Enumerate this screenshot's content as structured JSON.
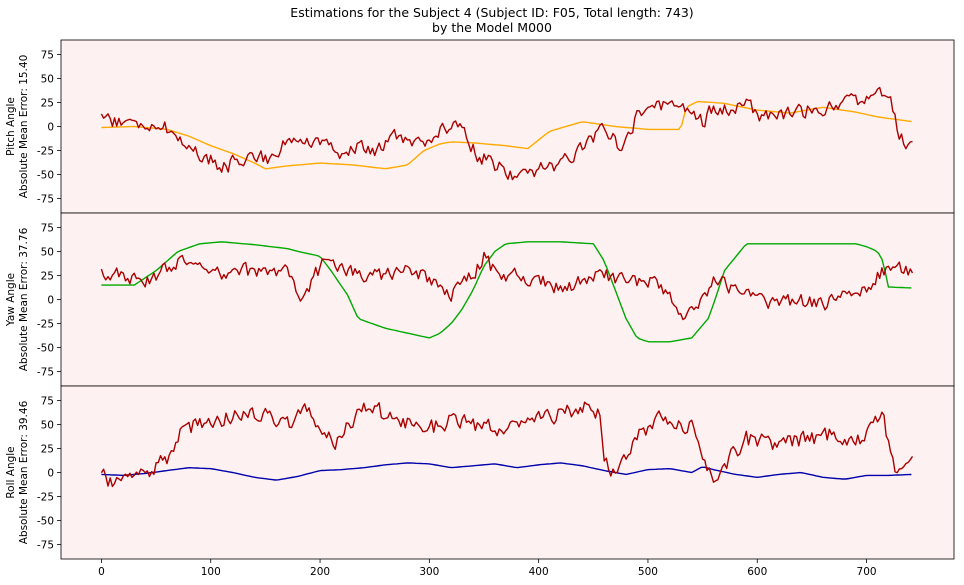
{
  "title": {
    "line1": "Estimations for the Subject 4 (Subject ID: F05, Total length: 743)",
    "line2": "by the Model M000"
  },
  "colors": {
    "panel_bg": "#fdf1f1",
    "estimate": "#aa0000",
    "pitch": "#ffaa00",
    "yaw": "#00aa00",
    "roll": "#0000aa",
    "axis": "#000000"
  },
  "chart_data": [
    {
      "type": "line",
      "panel": "pitch",
      "ylabel": [
        "Pitch Angle",
        "Absolute Mean Error: 15.40"
      ],
      "xlim": [
        -37,
        780
      ],
      "ylim": [
        -90,
        90
      ],
      "yticks": [
        -75,
        -50,
        -25,
        0,
        25,
        50,
        75
      ],
      "xticks": [],
      "series": [
        {
          "role": "ground_truth",
          "color": "#ffaa00",
          "x": [
            0,
            30,
            60,
            80,
            100,
            120,
            140,
            150,
            170,
            200,
            230,
            260,
            280,
            295,
            310,
            320,
            340,
            370,
            390,
            410,
            440,
            470,
            500,
            520,
            530,
            535,
            545,
            560,
            570,
            600,
            630,
            660,
            690,
            710,
            742
          ],
          "y": [
            -1,
            0,
            -3,
            -10,
            -20,
            -28,
            -38,
            -44,
            -41,
            -38,
            -40,
            -44,
            -40,
            -25,
            -18,
            -16,
            -17,
            -20,
            -23,
            -5,
            5,
            0,
            -3,
            -3,
            -3,
            20,
            26,
            25,
            24,
            17,
            14,
            20,
            15,
            10,
            5
          ]
        },
        {
          "role": "estimate",
          "color": "#aa0000",
          "x": [
            0,
            15,
            25,
            40,
            55,
            70,
            85,
            100,
            110,
            120,
            140,
            155,
            170,
            185,
            200,
            215,
            230,
            250,
            270,
            285,
            300,
            315,
            330,
            345,
            360,
            375,
            385,
            400,
            420,
            440,
            460,
            475,
            490,
            505,
            520,
            535,
            550,
            560,
            575,
            590,
            605,
            620,
            640,
            660,
            680,
            700,
            710,
            720,
            730,
            742
          ],
          "y": [
            10,
            5,
            2,
            0,
            3,
            -12,
            -25,
            -35,
            -45,
            -38,
            -30,
            -35,
            -10,
            -20,
            -15,
            -30,
            -22,
            -25,
            -10,
            -15,
            -20,
            0,
            -5,
            -30,
            -40,
            -50,
            -52,
            -45,
            -40,
            -20,
            0,
            -20,
            10,
            25,
            20,
            15,
            5,
            20,
            15,
            25,
            10,
            10,
            15,
            20,
            25,
            30,
            40,
            35,
            -10,
            -20
          ],
          "noise": 7
        }
      ]
    },
    {
      "type": "line",
      "panel": "yaw",
      "ylabel": [
        "Yaw Angle",
        "Absolute Mean Error: 37.76"
      ],
      "xlim": [
        -37,
        780
      ],
      "ylim": [
        -90,
        90
      ],
      "yticks": [
        -75,
        -50,
        -25,
        0,
        25,
        50,
        75
      ],
      "xticks": [],
      "series": [
        {
          "role": "ground_truth",
          "color": "#00aa00",
          "x": [
            0,
            30,
            50,
            70,
            90,
            110,
            140,
            170,
            180,
            200,
            210,
            225,
            235,
            260,
            280,
            300,
            310,
            320,
            330,
            340,
            350,
            360,
            370,
            390,
            420,
            450,
            460,
            470,
            480,
            490,
            500,
            520,
            540,
            555,
            560,
            570,
            590,
            620,
            650,
            690,
            700,
            710,
            715,
            720,
            742
          ],
          "y": [
            15,
            15,
            30,
            50,
            58,
            60,
            57,
            53,
            50,
            45,
            30,
            5,
            -20,
            -30,
            -35,
            -40,
            -35,
            -25,
            -10,
            10,
            35,
            50,
            58,
            60,
            60,
            58,
            40,
            10,
            -20,
            -40,
            -44,
            -44,
            -40,
            -20,
            -5,
            30,
            58,
            58,
            58,
            58,
            55,
            50,
            40,
            13,
            12
          ]
        },
        {
          "role": "estimate",
          "color": "#aa0000",
          "x": [
            0,
            20,
            40,
            55,
            70,
            90,
            110,
            130,
            150,
            170,
            185,
            195,
            205,
            220,
            240,
            260,
            280,
            300,
            320,
            340,
            350,
            365,
            380,
            400,
            420,
            440,
            460,
            480,
            500,
            520,
            530,
            540,
            555,
            560,
            580,
            600,
            620,
            640,
            660,
            680,
            700,
            710,
            720,
            742
          ],
          "y": [
            28,
            25,
            15,
            30,
            40,
            30,
            25,
            30,
            28,
            30,
            0,
            25,
            40,
            30,
            25,
            25,
            30,
            20,
            5,
            25,
            45,
            20,
            25,
            20,
            10,
            20,
            25,
            20,
            20,
            5,
            -15,
            -10,
            0,
            25,
            10,
            0,
            -5,
            0,
            -5,
            5,
            10,
            25,
            35,
            30
          ],
          "noise": 7
        }
      ]
    },
    {
      "type": "line",
      "panel": "roll",
      "ylabel": [
        "Roll Angle",
        "Absolute Mean Error: 39.46"
      ],
      "xlim": [
        -37,
        780
      ],
      "ylim": [
        -90,
        90
      ],
      "yticks": [
        -75,
        -50,
        -25,
        0,
        25,
        50,
        75
      ],
      "xticks": [
        0,
        100,
        200,
        300,
        400,
        500,
        600,
        700
      ],
      "series": [
        {
          "role": "ground_truth",
          "color": "#0000aa",
          "x": [
            0,
            20,
            40,
            60,
            80,
            100,
            120,
            140,
            160,
            180,
            200,
            220,
            240,
            260,
            280,
            300,
            320,
            340,
            360,
            380,
            400,
            420,
            440,
            460,
            480,
            500,
            520,
            540,
            550,
            560,
            580,
            600,
            620,
            640,
            660,
            680,
            700,
            720,
            742
          ],
          "y": [
            -2,
            -3,
            -1,
            2,
            5,
            4,
            0,
            -5,
            -8,
            -4,
            2,
            3,
            5,
            8,
            10,
            9,
            5,
            7,
            9,
            5,
            8,
            10,
            7,
            2,
            -2,
            3,
            4,
            0,
            6,
            3,
            -2,
            -5,
            -2,
            0,
            -5,
            -7,
            -3,
            -3,
            -2
          ]
        },
        {
          "role": "estimate",
          "color": "#aa0000",
          "x": [
            0,
            15,
            30,
            45,
            60,
            75,
            90,
            110,
            130,
            150,
            170,
            185,
            200,
            215,
            230,
            245,
            260,
            280,
            300,
            320,
            340,
            360,
            380,
            400,
            420,
            440,
            455,
            460,
            470,
            490,
            510,
            530,
            540,
            550,
            560,
            575,
            590,
            610,
            630,
            650,
            670,
            690,
            700,
            710,
            715,
            725,
            742
          ],
          "y": [
            -5,
            -10,
            5,
            0,
            15,
            45,
            50,
            55,
            60,
            65,
            50,
            65,
            50,
            30,
            55,
            70,
            60,
            50,
            45,
            55,
            50,
            45,
            55,
            55,
            60,
            70,
            60,
            15,
            0,
            40,
            55,
            50,
            50,
            5,
            -5,
            15,
            35,
            30,
            30,
            35,
            40,
            35,
            40,
            55,
            60,
            5,
            10
          ],
          "noise": 8
        }
      ]
    }
  ]
}
